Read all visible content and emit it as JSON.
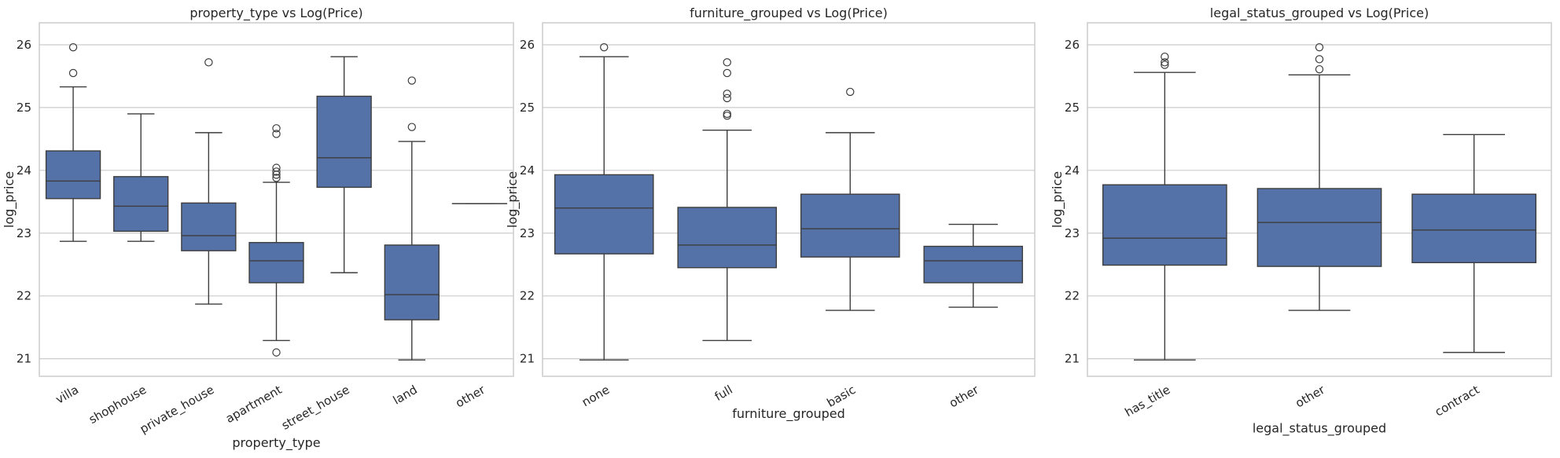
{
  "chart_data": [
    {
      "type": "box",
      "title": "property_type vs Log(Price)",
      "xlabel": "property_type",
      "ylabel": "log_price",
      "ylim": [
        20.72,
        26.35
      ],
      "yticks": [
        21,
        22,
        23,
        24,
        25,
        26
      ],
      "grid": "horizontal",
      "color": "#5572a8",
      "categories": [
        "villa",
        "shophouse",
        "private_house",
        "apartment",
        "street_house",
        "land",
        "other"
      ],
      "boxes": [
        {
          "min": 22.87,
          "q1": 23.55,
          "median": 23.83,
          "q3": 24.31,
          "max": 25.33,
          "outliers": [
            25.55,
            25.96
          ]
        },
        {
          "min": 22.87,
          "q1": 23.03,
          "median": 23.43,
          "q3": 23.9,
          "max": 24.9,
          "outliers": []
        },
        {
          "min": 21.87,
          "q1": 22.72,
          "median": 22.96,
          "q3": 23.48,
          "max": 24.6,
          "outliers": [
            25.72
          ]
        },
        {
          "min": 21.29,
          "q1": 22.21,
          "median": 22.56,
          "q3": 22.85,
          "max": 23.81,
          "outliers": [
            21.1,
            23.88,
            23.93,
            23.98,
            24.04,
            24.58,
            24.67
          ]
        },
        {
          "min": 22.37,
          "q1": 23.73,
          "median": 24.2,
          "q3": 25.18,
          "max": 25.81,
          "outliers": []
        },
        {
          "min": 20.98,
          "q1": 21.62,
          "median": 22.02,
          "q3": 22.81,
          "max": 24.46,
          "outliers": [
            24.69,
            25.43
          ]
        },
        {
          "min": 23.47,
          "q1": 23.47,
          "median": 23.47,
          "q3": 23.47,
          "max": 23.47,
          "outliers": []
        }
      ]
    },
    {
      "type": "box",
      "title": "furniture_grouped vs Log(Price)",
      "xlabel": "furniture_grouped",
      "ylabel": "log_price",
      "ylim": [
        20.72,
        26.35
      ],
      "yticks": [
        21,
        22,
        23,
        24,
        25,
        26
      ],
      "grid": "horizontal",
      "color": "#5572a8",
      "categories": [
        "none",
        "full",
        "basic",
        "other"
      ],
      "boxes": [
        {
          "min": 20.98,
          "q1": 22.67,
          "median": 23.4,
          "q3": 23.93,
          "max": 25.81,
          "outliers": [
            25.96
          ]
        },
        {
          "min": 21.29,
          "q1": 22.45,
          "median": 22.81,
          "q3": 23.41,
          "max": 24.64,
          "outliers": [
            24.87,
            24.9,
            25.15,
            25.22,
            25.55,
            25.72
          ]
        },
        {
          "min": 21.77,
          "q1": 22.62,
          "median": 23.07,
          "q3": 23.62,
          "max": 24.6,
          "outliers": [
            25.25
          ]
        },
        {
          "min": 21.82,
          "q1": 22.21,
          "median": 22.56,
          "q3": 22.79,
          "max": 23.14,
          "outliers": []
        }
      ]
    },
    {
      "type": "box",
      "title": "legal_status_grouped vs Log(Price)",
      "xlabel": "legal_status_grouped",
      "ylabel": "log_price",
      "ylim": [
        20.72,
        26.35
      ],
      "yticks": [
        21,
        22,
        23,
        24,
        25,
        26
      ],
      "grid": "horizontal",
      "color": "#5572a8",
      "categories": [
        "has_title",
        "other",
        "contract"
      ],
      "boxes": [
        {
          "min": 20.98,
          "q1": 22.49,
          "median": 22.92,
          "q3": 23.77,
          "max": 25.56,
          "outliers": [
            25.68,
            25.72,
            25.81
          ]
        },
        {
          "min": 21.77,
          "q1": 22.47,
          "median": 23.17,
          "q3": 23.71,
          "max": 25.52,
          "outliers": [
            25.61,
            25.77,
            25.96
          ]
        },
        {
          "min": 21.1,
          "q1": 22.53,
          "median": 23.05,
          "q3": 23.62,
          "max": 24.57,
          "outliers": []
        }
      ]
    }
  ]
}
